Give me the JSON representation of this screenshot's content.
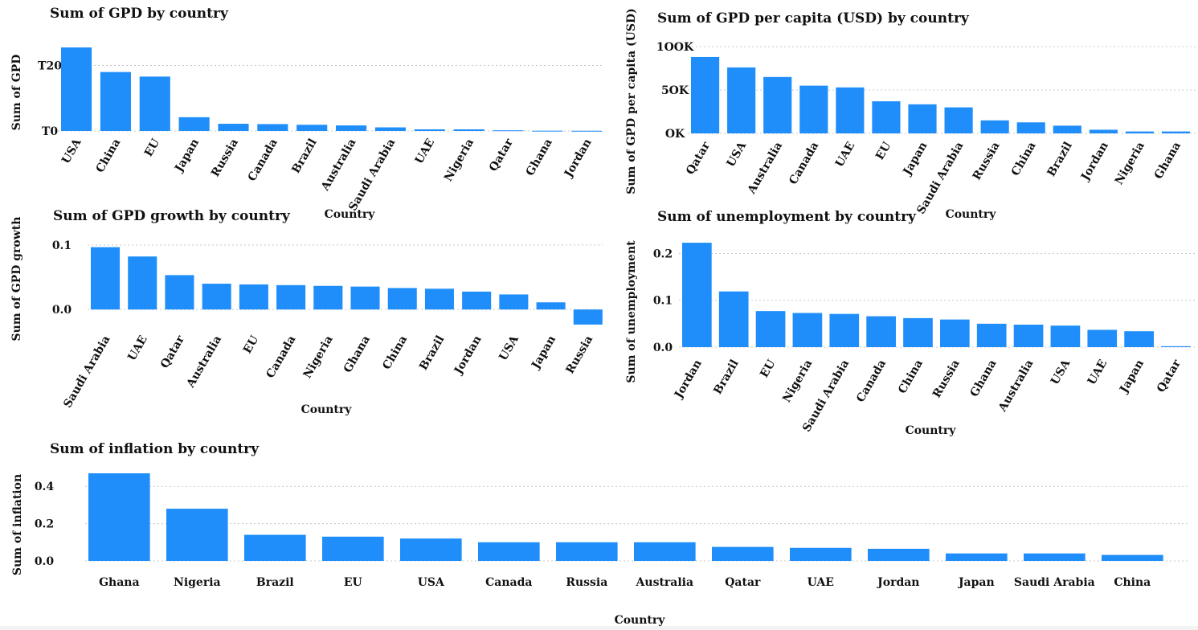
{
  "chart_data": [
    {
      "type": "bar",
      "title": "Sum of GPD by country",
      "xlabel": "Country",
      "ylabel": "Sum of GPD",
      "categories": [
        "USA",
        "China",
        "EU",
        "Japan",
        "Russia",
        "Canada",
        "Brazil",
        "Australia",
        "Saudi Arabia",
        "UAE",
        "Nigeria",
        "Qatar",
        "Ghana",
        "Jordan"
      ],
      "values": [
        25.5,
        18.0,
        16.6,
        4.2,
        2.2,
        2.1,
        1.9,
        1.7,
        1.1,
        0.5,
        0.5,
        0.2,
        0.08,
        0.05
      ],
      "ylim": [
        0,
        26
      ],
      "yticks": [
        {
          "v": 0,
          "label": "T0"
        },
        {
          "v": 20,
          "label": "T20"
        }
      ],
      "grid": true
    },
    {
      "type": "bar",
      "title": "Sum of GPD per capita (USD) by country",
      "xlabel": "Country",
      "ylabel": "Sum of GPD per capita (USD)",
      "categories": [
        "Qatar",
        "USA",
        "Australia",
        "Canada",
        "UAE",
        "EU",
        "Japan",
        "Saudi Arabia",
        "Russia",
        "China",
        "Brazil",
        "Jordan",
        "Nigeria",
        "Ghana"
      ],
      "values": [
        88000,
        76000,
        65000,
        55000,
        53000,
        37000,
        33500,
        30000,
        15000,
        12700,
        8900,
        4200,
        2200,
        2200
      ],
      "ylim": [
        0,
        100000
      ],
      "yticks": [
        {
          "v": 0,
          "label": "OK"
        },
        {
          "v": 50000,
          "label": "5OK"
        },
        {
          "v": 100000,
          "label": "1OOK"
        }
      ],
      "grid": true
    },
    {
      "type": "bar",
      "title": "Sum of GPD growth by country",
      "xlabel": "Country",
      "ylabel": "Sum of GPD growth",
      "categories": [
        "Saudi Arabia",
        "UAE",
        "Qatar",
        "Australia",
        "EU",
        "Canada",
        "Nigeria",
        "Ghana",
        "China",
        "Brazil",
        "Jordan",
        "USA",
        "Japan",
        "Russia"
      ],
      "values": [
        0.087,
        0.074,
        0.048,
        0.036,
        0.035,
        0.034,
        0.033,
        0.032,
        0.03,
        0.029,
        0.025,
        0.021,
        0.01,
        -0.021
      ],
      "ylim": [
        -0.02,
        0.1
      ],
      "yticks": [
        {
          "v": 0,
          "label": "0.0"
        },
        {
          "v": 0.09,
          "label": "0.1"
        }
      ],
      "grid": true
    },
    {
      "type": "bar",
      "title": "Sum of unemployment by country",
      "xlabel": "Country",
      "ylabel": "Sum of unemployment",
      "categories": [
        "Jordan",
        "Brazil",
        "EU",
        "Nigeria",
        "Saudi Arabia",
        "Canada",
        "China",
        "Russia",
        "Ghana",
        "Australia",
        "USA",
        "UAE",
        "Japan",
        "Qatar"
      ],
      "values": [
        0.223,
        0.119,
        0.077,
        0.073,
        0.071,
        0.066,
        0.062,
        0.059,
        0.05,
        0.048,
        0.046,
        0.037,
        0.034,
        0.002
      ],
      "ylim": [
        0,
        0.23
      ],
      "yticks": [
        {
          "v": 0,
          "label": "0.0"
        },
        {
          "v": 0.1,
          "label": "0.1"
        },
        {
          "v": 0.2,
          "label": "0.2"
        }
      ],
      "grid": true
    },
    {
      "type": "bar",
      "title": "Sum of inflation by country",
      "xlabel": "Country",
      "ylabel": "Sum of inflation",
      "categories": [
        "Ghana",
        "Nigeria",
        "Brazil",
        "EU",
        "USA",
        "Canada",
        "Russia",
        "Australia",
        "Qatar",
        "UAE",
        "Jordan",
        "Japan",
        "Saudi Arabia",
        "China"
      ],
      "values": [
        0.47,
        0.28,
        0.14,
        0.13,
        0.12,
        0.1,
        0.1,
        0.1,
        0.075,
        0.07,
        0.065,
        0.04,
        0.04,
        0.032
      ],
      "ylim": [
        0,
        0.47
      ],
      "yticks": [
        {
          "v": 0,
          "label": "0.0"
        },
        {
          "v": 0.2,
          "label": "0.2"
        },
        {
          "v": 0.4,
          "label": "0.4"
        }
      ],
      "grid": true
    }
  ],
  "colors": {
    "bar": "#1f8efa",
    "grid": "#c8c8c8",
    "text": "#111111"
  }
}
